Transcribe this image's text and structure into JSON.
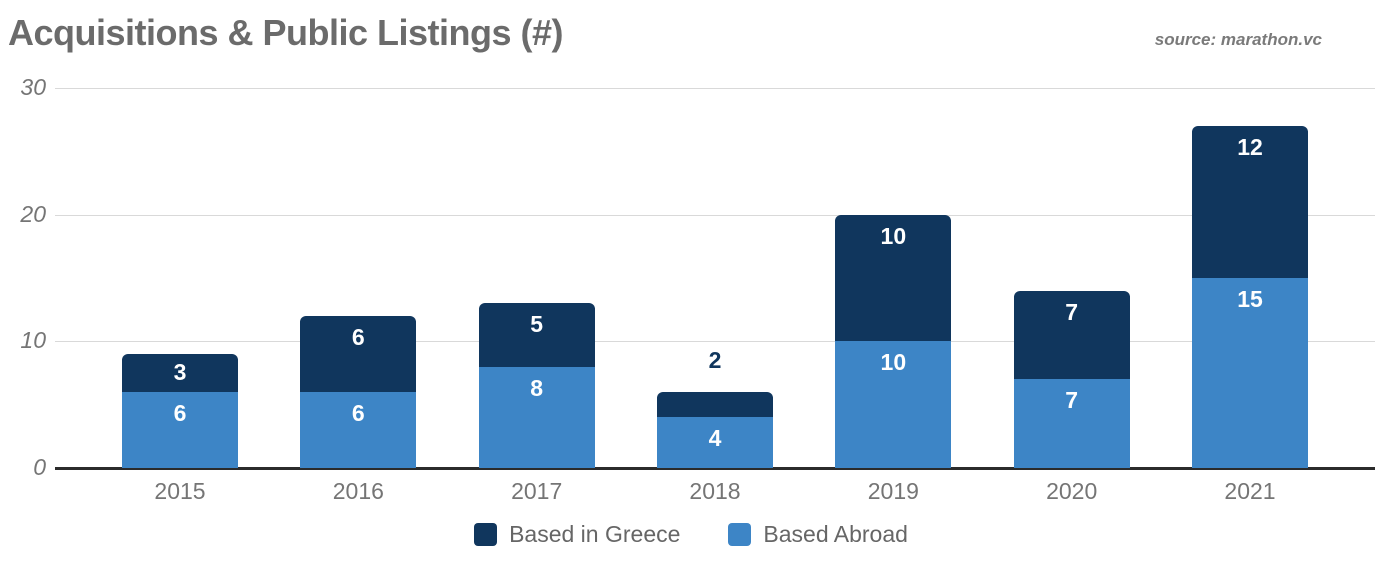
{
  "header": {
    "title": "Acquisitions & Public Listings (#)",
    "source": "source: marathon.vc"
  },
  "chart_data": {
    "type": "bar",
    "stacked": true,
    "title": "Acquisitions & Public Listings (#)",
    "source": "source: marathon.vc",
    "categories": [
      "2015",
      "2016",
      "2017",
      "2018",
      "2019",
      "2020",
      "2021"
    ],
    "series": [
      {
        "name": "Based in Greece",
        "color": "#10365d",
        "values": [
          3,
          6,
          5,
          2,
          10,
          7,
          12
        ]
      },
      {
        "name": "Based Abroad",
        "color": "#3d85c6",
        "values": [
          6,
          6,
          8,
          4,
          10,
          7,
          15
        ]
      }
    ],
    "xlabel": "",
    "ylabel": "",
    "ylim": [
      0,
      30
    ],
    "yticks": [
      0,
      10,
      20,
      30
    ],
    "grid": true,
    "legend_position": "bottom",
    "colors": {
      "gridline": "#d9d9d9",
      "baseline": "#2b2b2b",
      "axis_text": "#757575",
      "title_text": "#6b6b6b",
      "bar_label_inside": "#ffffff",
      "bar_label_outside": "#10365d"
    }
  }
}
